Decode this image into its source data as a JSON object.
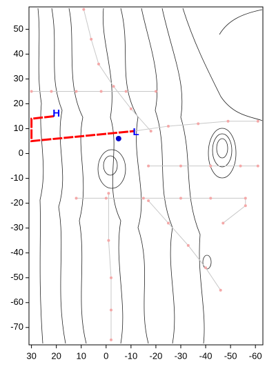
{
  "chart_data": {
    "type": "line",
    "xlim": [
      31,
      -63
    ],
    "ylim": [
      -77,
      59
    ],
    "xticks": [
      30,
      20,
      10,
      0,
      -10,
      -20,
      -30,
      -40,
      -50,
      -60
    ],
    "yticks": [
      50,
      40,
      30,
      20,
      10,
      0,
      -10,
      -20,
      -30,
      -40,
      -50,
      -60,
      -70
    ],
    "series": [
      {
        "color": "#c8c8c8",
        "marker_color": "#f4a8a8",
        "linewidth": 1,
        "x": [
          30,
          22,
          12,
          2,
          -8,
          -20
        ],
        "y": [
          25,
          25,
          25,
          25,
          25,
          25
        ]
      },
      {
        "color": "#c8c8c8",
        "marker_color": "#f4a8a8",
        "linewidth": 1,
        "x": [
          -11,
          -25,
          -37,
          -49,
          -61
        ],
        "y": [
          9,
          11,
          12,
          13,
          13
        ]
      },
      {
        "color": "#c8c8c8",
        "marker_color": "#f4a8a8",
        "linewidth": 1,
        "x": [
          -17,
          -25,
          -33,
          -40,
          -46
        ],
        "y": [
          -19,
          -28,
          -37,
          -46,
          -55
        ]
      },
      {
        "color": "#c8c8c8",
        "marker_color": "#f4a8a8",
        "linewidth": 1,
        "x": [
          -1,
          -1,
          -2,
          -2,
          -2
        ],
        "y": [
          -16,
          -35,
          -50,
          -63,
          -75
        ]
      },
      {
        "color": "#c8c8c8",
        "marker_color": "#f4a8a8",
        "linewidth": 1,
        "x": [
          12,
          0,
          -15,
          -30,
          -42,
          -56,
          -56,
          -47
        ],
        "y": [
          -18,
          -18,
          -18,
          -18,
          -18,
          -18,
          -21,
          -28
        ]
      },
      {
        "color": "#c8c8c8",
        "marker_color": "#f4a8a8",
        "linewidth": 1,
        "x": [
          -17,
          -30,
          -42,
          -54,
          -61
        ],
        "y": [
          -5,
          -5,
          -5,
          -5,
          -5
        ]
      },
      {
        "color": "#c8c8c8",
        "marker_color": "#f4a8a8",
        "linewidth": 1,
        "x": [
          9,
          6,
          3,
          -3,
          -10,
          -18
        ],
        "y": [
          58,
          46,
          36,
          27,
          18,
          9
        ]
      },
      {
        "color": "#ff0000",
        "linewidth": 3,
        "x": [
          21,
          30,
          30,
          -11
        ],
        "y": [
          15,
          14,
          5,
          9
        ]
      },
      {
        "color": "#0000cc",
        "marker_color": "#0000cc",
        "marker_size": 4,
        "linewidth": 0,
        "x": [
          -5
        ],
        "y": [
          6
        ]
      }
    ],
    "annotations": [
      {
        "text": "H",
        "x": 20,
        "y": 16,
        "color": "#0000ff"
      },
      {
        "text": "L",
        "x": -12,
        "y": 8.5,
        "color": "#0000ff"
      }
    ]
  }
}
